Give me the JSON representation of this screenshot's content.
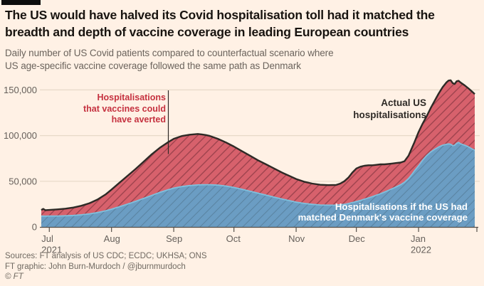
{
  "colors": {
    "background": "#fff1e5",
    "actual_fill": "#d7616c",
    "actual_hatch": "#9e434e",
    "actual_line": "#2e2a26",
    "counterfactual_fill": "#6b9dc3",
    "counterfactual_hatch": "#5a84a2",
    "counterfactual_line": "#7fc0dd",
    "gridline": "#e7d9c8",
    "axis": "#55504a",
    "tick_label": "#66605b",
    "annotation_red": "#c5313f"
  },
  "header": {
    "title_line1": "The US would have halved its Covid hospitalisation toll had it matched the",
    "title_line2": "breadth and depth of vaccine coverage in leading European countries",
    "subtitle_line1": "Daily number of US Covid patients compared to counterfactual scenario where",
    "subtitle_line2": "US age-specific vaccine coverage followed the same path as Denmark"
  },
  "annotations": {
    "averted": {
      "line1": "Hospitalisations",
      "line2": "that vaccines could",
      "line3": "have averted"
    },
    "actual": {
      "line1": "Actual US",
      "line2": "hospitalisations"
    },
    "counterfactual": {
      "line1": "Hospitalisations if the US had",
      "line2": "matched Denmark's vaccine coverage"
    }
  },
  "footer": {
    "sources": "Sources: FT analysis of US CDC; ECDC; UKHSA; ONS",
    "credit": "FT graphic: John Burn-Murdoch / @jburnmurdoch",
    "copyright": "© FT"
  },
  "chart_data": {
    "type": "area",
    "x_unit": "days since 27 Jun 2021",
    "x_domain_days": 216,
    "ylim": [
      0,
      165000
    ],
    "grid": true,
    "y_ticks": [
      {
        "value": 0,
        "label": "0"
      },
      {
        "value": 50000,
        "label": "50,000"
      },
      {
        "value": 100000,
        "label": "100,000"
      },
      {
        "value": 150000,
        "label": "150,000"
      }
    ],
    "x_ticks": [
      {
        "day": 4,
        "label": "Jul",
        "year": "2021"
      },
      {
        "day": 35,
        "label": "Aug"
      },
      {
        "day": 66,
        "label": "Sep"
      },
      {
        "day": 96,
        "label": "Oct"
      },
      {
        "day": 127,
        "label": "Nov"
      },
      {
        "day": 157,
        "label": "Dec"
      },
      {
        "day": 188,
        "label": "Jan",
        "year": "2022"
      }
    ],
    "series": [
      {
        "name": "Actual US hospitalisations",
        "points": [
          [
            0,
            18500
          ],
          [
            1,
            19800
          ],
          [
            2,
            18400
          ],
          [
            4,
            18600
          ],
          [
            8,
            19200
          ],
          [
            12,
            20000
          ],
          [
            16,
            21300
          ],
          [
            20,
            23200
          ],
          [
            24,
            26000
          ],
          [
            28,
            30000
          ],
          [
            32,
            35500
          ],
          [
            35,
            41000
          ],
          [
            39,
            48500
          ],
          [
            43,
            56000
          ],
          [
            47,
            63500
          ],
          [
            51,
            71500
          ],
          [
            55,
            79500
          ],
          [
            59,
            86500
          ],
          [
            63,
            92500
          ],
          [
            66,
            96500
          ],
          [
            70,
            99500
          ],
          [
            74,
            101000
          ],
          [
            78,
            101800
          ],
          [
            80,
            101300
          ],
          [
            82,
            100600
          ],
          [
            84,
            99600
          ],
          [
            88,
            96500
          ],
          [
            92,
            92500
          ],
          [
            96,
            88000
          ],
          [
            100,
            83000
          ],
          [
            104,
            78000
          ],
          [
            108,
            73000
          ],
          [
            112,
            68500
          ],
          [
            116,
            64000
          ],
          [
            120,
            59500
          ],
          [
            124,
            55500
          ],
          [
            127,
            52500
          ],
          [
            131,
            49500
          ],
          [
            135,
            47500
          ],
          [
            139,
            46200
          ],
          [
            143,
            45800
          ],
          [
            147,
            46000
          ],
          [
            149,
            47500
          ],
          [
            151,
            50000
          ],
          [
            153,
            54000
          ],
          [
            155,
            59500
          ],
          [
            157,
            64000
          ],
          [
            159,
            66000
          ],
          [
            161,
            67000
          ],
          [
            163,
            67500
          ],
          [
            165,
            67500
          ],
          [
            167,
            68000
          ],
          [
            169,
            68500
          ],
          [
            171,
            68500
          ],
          [
            173,
            69000
          ],
          [
            175,
            69500
          ],
          [
            177,
            70000
          ],
          [
            179,
            70500
          ],
          [
            181,
            72000
          ],
          [
            183,
            78000
          ],
          [
            185,
            88000
          ],
          [
            186,
            93000
          ],
          [
            188,
            104000
          ],
          [
            190,
            113000
          ],
          [
            192,
            121000
          ],
          [
            194,
            130000
          ],
          [
            196,
            138000
          ],
          [
            198,
            146000
          ],
          [
            200,
            153000
          ],
          [
            202,
            158500
          ],
          [
            203,
            160300
          ],
          [
            204,
            160600
          ],
          [
            205,
            157500
          ],
          [
            206,
            156500
          ],
          [
            207,
            159500
          ],
          [
            208,
            160000
          ],
          [
            209,
            158000
          ],
          [
            211,
            155000
          ],
          [
            213,
            151500
          ],
          [
            215,
            147500
          ],
          [
            216,
            145500
          ]
        ]
      },
      {
        "name": "Hospitalisations if the US had matched Denmark's vaccine coverage",
        "points": [
          [
            0,
            11800
          ],
          [
            1,
            11900
          ],
          [
            2,
            11800
          ],
          [
            4,
            12000
          ],
          [
            8,
            12000
          ],
          [
            12,
            12200
          ],
          [
            16,
            12600
          ],
          [
            20,
            13300
          ],
          [
            24,
            14300
          ],
          [
            28,
            15700
          ],
          [
            32,
            17600
          ],
          [
            35,
            19500
          ],
          [
            39,
            22200
          ],
          [
            43,
            25000
          ],
          [
            47,
            28000
          ],
          [
            51,
            31200
          ],
          [
            55,
            34500
          ],
          [
            59,
            37800
          ],
          [
            63,
            40600
          ],
          [
            66,
            42500
          ],
          [
            70,
            44200
          ],
          [
            74,
            45300
          ],
          [
            78,
            46000
          ],
          [
            80,
            46200
          ],
          [
            82,
            46300
          ],
          [
            84,
            46300
          ],
          [
            88,
            45800
          ],
          [
            92,
            44800
          ],
          [
            96,
            43200
          ],
          [
            100,
            41300
          ],
          [
            104,
            39200
          ],
          [
            108,
            37000
          ],
          [
            112,
            34800
          ],
          [
            116,
            32600
          ],
          [
            120,
            30500
          ],
          [
            124,
            28600
          ],
          [
            127,
            27200
          ],
          [
            131,
            25800
          ],
          [
            135,
            24800
          ],
          [
            139,
            24100
          ],
          [
            143,
            23800
          ],
          [
            147,
            23900
          ],
          [
            149,
            24200
          ],
          [
            151,
            24800
          ],
          [
            153,
            25600
          ],
          [
            155,
            26600
          ],
          [
            157,
            27800
          ],
          [
            159,
            29000
          ],
          [
            161,
            30400
          ],
          [
            163,
            31800
          ],
          [
            165,
            33200
          ],
          [
            167,
            34800
          ],
          [
            169,
            36400
          ],
          [
            171,
            38200
          ],
          [
            173,
            40000
          ],
          [
            175,
            42000
          ],
          [
            177,
            44000
          ],
          [
            179,
            46200
          ],
          [
            181,
            49000
          ],
          [
            183,
            53000
          ],
          [
            185,
            58500
          ],
          [
            186,
            61500
          ],
          [
            188,
            67000
          ],
          [
            190,
            73000
          ],
          [
            192,
            78000
          ],
          [
            194,
            82000
          ],
          [
            196,
            85000
          ],
          [
            198,
            87500
          ],
          [
            200,
            89500
          ],
          [
            202,
            90500
          ],
          [
            203,
            91000
          ],
          [
            204,
            90500
          ],
          [
            205,
            89000
          ],
          [
            206,
            89500
          ],
          [
            207,
            91500
          ],
          [
            208,
            92500
          ],
          [
            209,
            91000
          ],
          [
            211,
            89500
          ],
          [
            213,
            87500
          ],
          [
            215,
            85000
          ],
          [
            216,
            84000
          ]
        ]
      }
    ]
  }
}
